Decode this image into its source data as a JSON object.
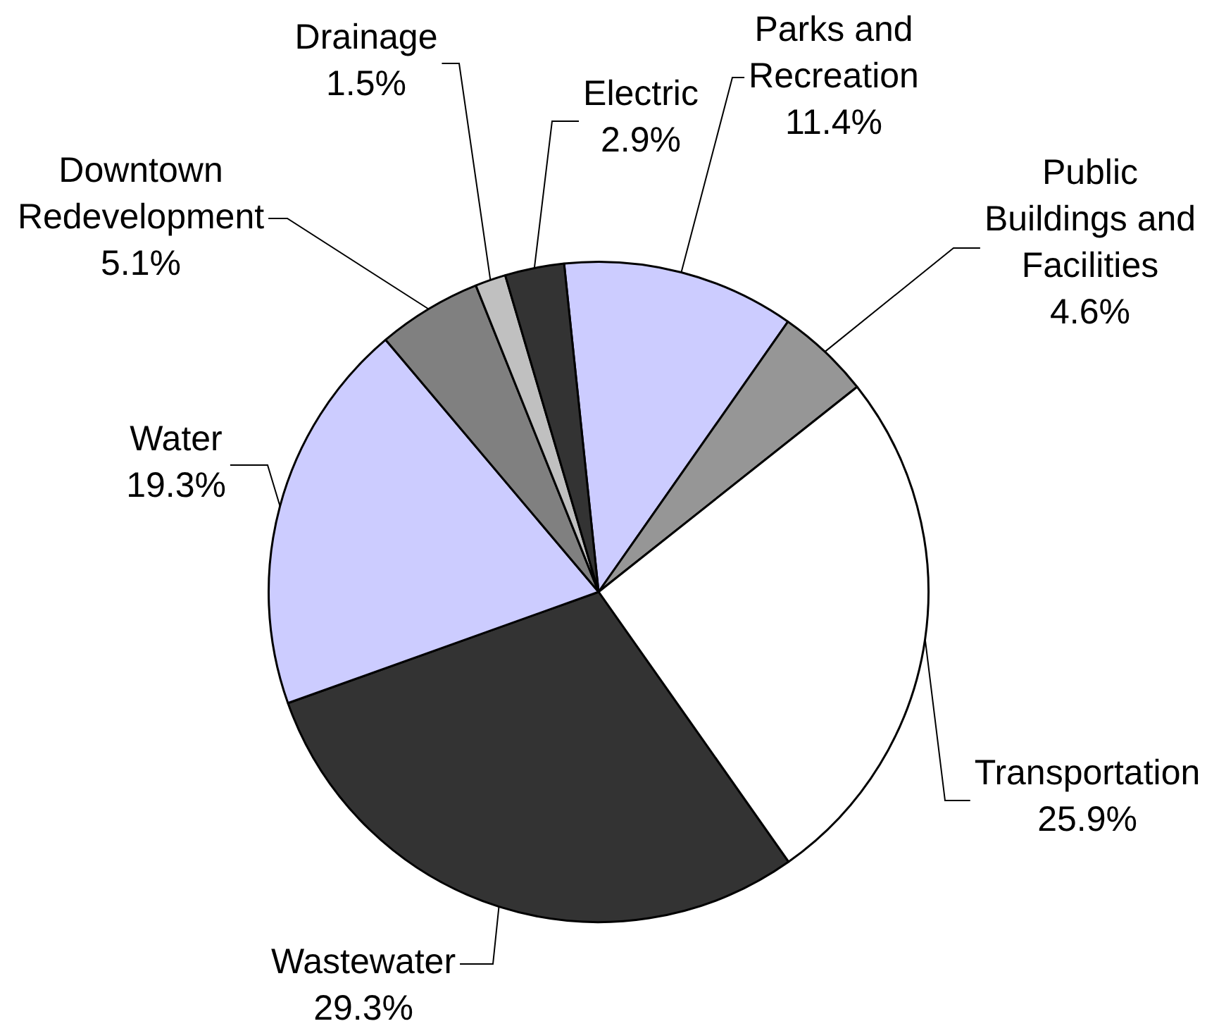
{
  "chart_data": {
    "type": "pie",
    "categories": [
      "Parks and Recreation",
      "Public Buildings and Facilities",
      "Transportation",
      "Wastewater",
      "Water",
      "Downtown Redevelopment",
      "Drainage",
      "Electric"
    ],
    "values": [
      11.4,
      4.6,
      25.9,
      29.3,
      19.3,
      5.1,
      1.5,
      2.9
    ],
    "value_labels": [
      "11.4%",
      "4.6%",
      "25.9%",
      "29.3%",
      "19.3%",
      "5.1%",
      "1.5%",
      "2.9%"
    ],
    "colors": [
      "#ccccff",
      "#969696",
      "#ffffff",
      "#333333",
      "#ccccff",
      "#808080",
      "#c0c0c0",
      "#333333"
    ]
  }
}
